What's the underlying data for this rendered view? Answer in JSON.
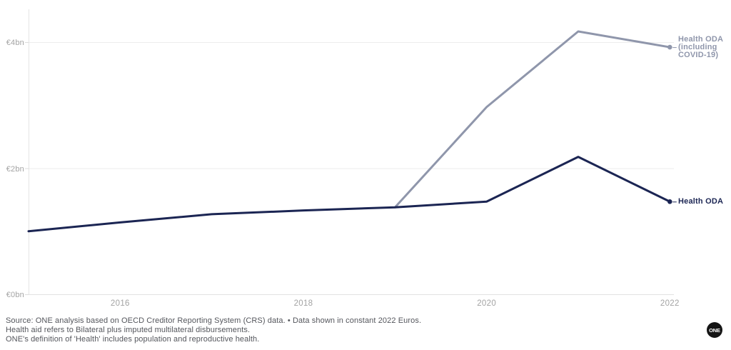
{
  "chart_data": {
    "type": "line",
    "title": "",
    "xlabel": "",
    "ylabel": "",
    "grid": "horizontal",
    "legend_position": "right-end-labels",
    "x_range": [
      2015,
      2022
    ],
    "ylim": [
      0,
      4.5
    ],
    "y_ticks": [
      {
        "label": "€0bn",
        "value": 0
      },
      {
        "label": "€2bn",
        "value": 2
      },
      {
        "label": "€4bn",
        "value": 4
      }
    ],
    "x_ticks": [
      {
        "label": "2016",
        "year": 2016
      },
      {
        "label": "2018",
        "year": 2018
      },
      {
        "label": "2020",
        "year": 2020
      },
      {
        "label": "2022",
        "year": 2022
      }
    ],
    "series": [
      {
        "name": "Health ODA (including COVID-19)",
        "label_lines": [
          "Health ODA",
          "(including",
          "COVID-19)"
        ],
        "color": "#8f96ab",
        "points": [
          {
            "year": 2019,
            "value": 1.38
          },
          {
            "year": 2020,
            "value": 2.97
          },
          {
            "year": 2021,
            "value": 4.17
          },
          {
            "year": 2022,
            "value": 3.92
          }
        ]
      },
      {
        "name": "Health ODA",
        "label_lines": [
          "Health ODA"
        ],
        "color": "#1b2553",
        "points": [
          {
            "year": 2015,
            "value": 1.0
          },
          {
            "year": 2016,
            "value": 1.14
          },
          {
            "year": 2017,
            "value": 1.27
          },
          {
            "year": 2018,
            "value": 1.33
          },
          {
            "year": 2019,
            "value": 1.38
          },
          {
            "year": 2020,
            "value": 1.47
          },
          {
            "year": 2021,
            "value": 2.18
          },
          {
            "year": 2022,
            "value": 1.47
          }
        ]
      }
    ]
  },
  "footer": {
    "line1": "Source: ONE analysis based on OECD Creditor Reporting System (CRS) data. • Data shown in constant 2022 Euros.",
    "line2": "Health aid refers to Bilateral plus imputed multilateral disbursements.",
    "line3": "ONE's definition of 'Health' includes population and reproductive health."
  },
  "logo": {
    "text": "ONE"
  },
  "colors": {
    "background": "#ffffff",
    "gridline": "#ededed",
    "baseline": "#e2e2e2",
    "axis_line": "#e4e4e4",
    "tick_mark": "#dcdcdc",
    "tick_label": "#a3a3a3",
    "footer_text": "#54565c",
    "navy": "#1b2553",
    "slate": "#8f96ab"
  }
}
